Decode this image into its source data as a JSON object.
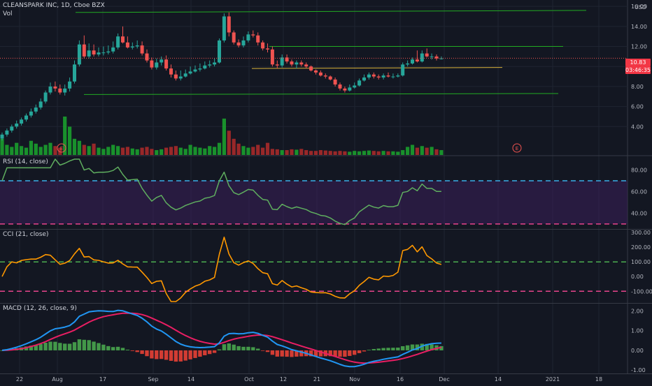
{
  "header": {
    "symbol_line": "CLEANSPARK INC, 1D, Cboe BZX",
    "vol_label": "Vol",
    "currency": "USD"
  },
  "price_badges": {
    "last": "10.83",
    "countdown": "03:46:35"
  },
  "event_markers": [
    "E",
    "E"
  ],
  "panes": {
    "rsi": {
      "label": "RSI (14, close)"
    },
    "cci": {
      "label": "CCI (21, close)"
    },
    "macd": {
      "label": "MACD (12, 26, close, 9)"
    }
  },
  "x_axis": {
    "labels": [
      "22",
      "Aug",
      "17",
      "Sep",
      "14",
      "Oct",
      "12",
      "21",
      "Nov",
      "16",
      "Dec",
      "14",
      "2021",
      "18"
    ]
  },
  "colors": {
    "background": "#131722",
    "up": "#26a69a",
    "down": "#ef5350",
    "vol_up": "#1b9e2e",
    "vol_down": "#a82a2a",
    "trendline": "#22ab22",
    "support": "#d8b23a",
    "rsi_line": "#5fae5f",
    "rsi_band": "#3a1f5a",
    "rsi_upper": "#3aaee8",
    "rsi_lower": "#e8448c",
    "cci_line": "#ff9800",
    "cci_upper": "#4caf50",
    "cci_lower": "#e8448c",
    "macd_line": "#2196f3",
    "signal_line": "#e91e63",
    "hist_up": "#4caf50",
    "hist_down": "#f44336"
  },
  "chart_data": [
    {
      "type": "candlestick",
      "title": "CLEANSPARK INC, 1D, Cboe BZX",
      "y_ticks": [
        "16.00",
        "14.00",
        "12.00",
        "10.00",
        "8.00",
        "6.00",
        "4.00"
      ],
      "ylim": [
        2,
        16.5
      ],
      "open": [
        2.8,
        3.2,
        3.6,
        4.0,
        4.3,
        4.7,
        5.1,
        5.5,
        5.9,
        6.5,
        7.4,
        8.0,
        7.8,
        7.4,
        7.8,
        8.5,
        10.2,
        12.2,
        11.0,
        11.6,
        11.2,
        11.4,
        11.4,
        11.5,
        11.9,
        13.0,
        12.4,
        11.9,
        12.0,
        12.1,
        11.3,
        10.6,
        9.9,
        10.4,
        10.7,
        9.8,
        9.2,
        8.8,
        9.0,
        9.3,
        9.5,
        9.7,
        9.8,
        10.1,
        10.2,
        10.4,
        12.6,
        15.0,
        13.4,
        12.4,
        12.1,
        12.6,
        13.2,
        13.1,
        12.4,
        11.8,
        11.7,
        10.2,
        10.1,
        10.9,
        10.5,
        10.2,
        10.4,
        10.2,
        10.0,
        9.6,
        9.4,
        9.1,
        9.0,
        8.7,
        8.2,
        7.8,
        7.6,
        7.9,
        8.1,
        8.6,
        8.9,
        9.2,
        9.0,
        8.9,
        9.1,
        9.0,
        9.0,
        9.1,
        10.2,
        10.3,
        10.7,
        10.5,
        11.3,
        11.0,
        11.0,
        10.8
      ],
      "high": [
        3.4,
        3.8,
        4.2,
        4.6,
        4.9,
        5.3,
        5.8,
        6.2,
        6.8,
        7.6,
        8.4,
        8.5,
        8.2,
        8.2,
        8.9,
        10.6,
        12.6,
        13.1,
        12.3,
        12.2,
        11.9,
        12.0,
        12.1,
        12.5,
        13.3,
        14.0,
        13.0,
        12.4,
        12.6,
        12.5,
        11.7,
        10.9,
        10.8,
        11.0,
        11.1,
        10.2,
        9.6,
        9.6,
        9.7,
        10.0,
        10.1,
        10.3,
        10.5,
        10.6,
        10.8,
        12.8,
        15.3,
        15.4,
        13.6,
        12.7,
        13.0,
        13.5,
        13.6,
        13.4,
        12.6,
        12.3,
        12.0,
        10.6,
        11.2,
        11.2,
        10.7,
        10.6,
        10.6,
        10.4,
        10.1,
        9.7,
        9.6,
        9.3,
        9.1,
        8.9,
        8.4,
        8.0,
        8.2,
        8.4,
        8.8,
        9.2,
        9.4,
        9.4,
        9.2,
        9.3,
        9.4,
        9.3,
        9.3,
        10.4,
        10.6,
        10.9,
        11.6,
        11.6,
        11.8,
        11.3,
        11.2,
        11.0
      ],
      "low": [
        2.6,
        3.0,
        3.4,
        3.8,
        4.1,
        4.5,
        4.9,
        5.3,
        5.7,
        6.3,
        7.2,
        7.5,
        7.2,
        7.1,
        7.5,
        8.3,
        10.0,
        10.8,
        10.8,
        11.0,
        11.0,
        11.1,
        11.2,
        11.3,
        11.7,
        12.3,
        11.8,
        11.7,
        11.8,
        11.1,
        10.4,
        9.7,
        9.7,
        10.1,
        9.6,
        8.9,
        8.6,
        8.6,
        8.9,
        9.2,
        9.4,
        9.5,
        9.7,
        9.9,
        10.0,
        10.3,
        12.4,
        13.0,
        12.2,
        11.9,
        11.9,
        12.4,
        12.9,
        12.1,
        11.6,
        11.4,
        10.0,
        9.8,
        9.9,
        10.3,
        10.0,
        9.8,
        10.0,
        9.8,
        9.5,
        9.2,
        9.0,
        8.8,
        8.6,
        8.0,
        7.6,
        7.4,
        7.5,
        7.8,
        8.0,
        8.5,
        8.7,
        8.8,
        8.7,
        8.7,
        8.9,
        8.8,
        8.9,
        9.0,
        10.0,
        10.2,
        10.4,
        10.4,
        10.9,
        10.7,
        10.6,
        10.7
      ],
      "close": [
        3.2,
        3.6,
        4.0,
        4.3,
        4.7,
        5.1,
        5.5,
        5.9,
        6.5,
        7.4,
        8.0,
        7.8,
        7.4,
        7.8,
        8.5,
        10.2,
        12.2,
        11.0,
        11.6,
        11.2,
        11.4,
        11.4,
        11.5,
        11.9,
        13.0,
        12.4,
        11.9,
        12.0,
        12.1,
        11.3,
        10.6,
        9.9,
        10.4,
        10.7,
        9.8,
        9.2,
        8.8,
        9.0,
        9.3,
        9.5,
        9.7,
        9.8,
        10.1,
        10.2,
        10.4,
        12.6,
        15.0,
        13.4,
        12.4,
        12.1,
        12.6,
        13.2,
        13.1,
        12.4,
        11.8,
        11.7,
        10.2,
        10.1,
        10.9,
        10.5,
        10.2,
        10.4,
        10.2,
        10.0,
        9.6,
        9.4,
        9.1,
        9.0,
        8.7,
        8.2,
        7.8,
        7.6,
        7.9,
        8.1,
        8.6,
        8.9,
        9.2,
        9.0,
        8.9,
        9.1,
        9.0,
        9.0,
        9.1,
        10.2,
        10.3,
        10.7,
        10.5,
        11.3,
        11.0,
        11.0,
        10.8,
        10.8
      ],
      "volume": [
        40,
        25,
        20,
        30,
        22,
        18,
        35,
        28,
        20,
        25,
        30,
        22,
        18,
        95,
        70,
        40,
        35,
        25,
        22,
        28,
        18,
        15,
        20,
        25,
        22,
        18,
        20,
        16,
        14,
        18,
        20,
        15,
        12,
        14,
        18,
        20,
        22,
        18,
        15,
        25,
        20,
        18,
        16,
        22,
        20,
        30,
        90,
        60,
        40,
        28,
        22,
        18,
        20,
        25,
        18,
        30,
        15,
        14,
        12,
        12,
        14,
        13,
        15,
        12,
        10,
        10,
        12,
        11,
        10,
        9,
        10,
        9,
        8,
        10,
        9,
        10,
        11,
        10,
        9,
        10,
        9,
        9,
        8,
        12,
        20,
        25,
        18,
        22,
        18,
        20,
        14,
        12
      ]
    },
    {
      "type": "line",
      "title": "RSI (14, close)",
      "y_ticks": [
        "80.00",
        "60.00",
        "40.00"
      ],
      "ylim": [
        28,
        90
      ],
      "reference_lines": [
        70,
        30
      ]
    },
    {
      "type": "line",
      "title": "CCI (21, close)",
      "y_ticks": [
        "300.00",
        "200.00",
        "100.00",
        "0.00",
        "-100.00"
      ],
      "ylim": [
        -170,
        310
      ],
      "reference_lines": [
        100,
        -100
      ]
    },
    {
      "type": "line",
      "title": "MACD (12, 26, close, 9)",
      "y_ticks": [
        "2.00",
        "1.00",
        "0.00",
        "-1.00"
      ],
      "ylim": [
        -1.1,
        2.3
      ]
    }
  ]
}
